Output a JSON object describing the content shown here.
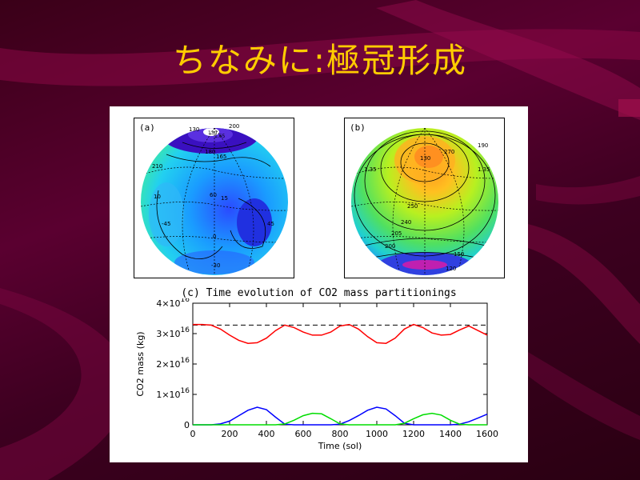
{
  "slide": {
    "title": "ちなみに:極冠形成"
  },
  "globes": [
    {
      "label": "(a)",
      "contours": [
        "130",
        "200",
        "165",
        "180",
        "210",
        "10",
        "-45",
        "60",
        "0",
        "15",
        "45",
        "-30",
        "130",
        "1.65"
      ]
    },
    {
      "label": "(b)",
      "contours": [
        "130",
        "270",
        "190",
        "1.35",
        "1.35",
        "250",
        "200",
        "205",
        "240",
        "150",
        "120"
      ]
    }
  ],
  "chart_data": {
    "type": "line",
    "title": "(c) Time evolution of CO2 mass partitionings",
    "xlabel": "Time (sol)",
    "ylabel": "CO2 mass (kg)",
    "xlim": [
      0,
      1600
    ],
    "ylim": [
      0,
      4e+16
    ],
    "xticks": [
      "0",
      "200",
      "400",
      "600",
      "800",
      "1000",
      "1200",
      "1400",
      "1600"
    ],
    "yticks": [
      {
        "value": 0,
        "label": "0"
      },
      {
        "value": 1e+16,
        "label": "1×10",
        "exp": "16"
      },
      {
        "value": 2e+16,
        "label": "2×10",
        "exp": "16"
      },
      {
        "value": 3e+16,
        "label": "3×10",
        "exp": "16"
      },
      {
        "value": 4e+16,
        "label": "4×10",
        "exp": "16"
      }
    ],
    "reference_line": {
      "y": 3.28e+16,
      "style": "dashed",
      "color": "#000000"
    },
    "series": [
      {
        "color": "#ff0000",
        "x": [
          0,
          50,
          100,
          150,
          200,
          250,
          300,
          350,
          400,
          450,
          500,
          550,
          600,
          650,
          700,
          750,
          800,
          850,
          900,
          950,
          1000,
          1050,
          1100,
          1150,
          1200,
          1250,
          1300,
          1350,
          1400,
          1450,
          1500,
          1550,
          1600
        ],
        "y": [
          3.3e+16,
          3.3e+16,
          3.28e+16,
          3.15e+16,
          2.95e+16,
          2.78e+16,
          2.68e+16,
          2.7e+16,
          2.85e+16,
          3.1e+16,
          3.28e+16,
          3.2e+16,
          3.05e+16,
          2.95e+16,
          2.95e+16,
          3.05e+16,
          3.25e+16,
          3.3e+16,
          3.15e+16,
          2.9e+16,
          2.7e+16,
          2.68e+16,
          2.85e+16,
          3.15e+16,
          3.3e+16,
          3.2e+16,
          3.02e+16,
          2.95e+16,
          2.97e+16,
          3.12e+16,
          3.25e+16,
          3.1e+16,
          2.95e+16
        ]
      },
      {
        "color": "#0000ff",
        "x": [
          0,
          100,
          150,
          200,
          250,
          300,
          350,
          400,
          450,
          500,
          550,
          700,
          750,
          800,
          850,
          900,
          950,
          1000,
          1050,
          1100,
          1150,
          1200,
          1400,
          1450,
          1500,
          1550,
          1600
        ],
        "y": [
          0,
          0,
          300000000000000.0,
          1200000000000000.0,
          3000000000000000.0,
          4800000000000000.0,
          5800000000000000.0,
          5000000000000000.0,
          2500000000000000.0,
          200000000000000.0,
          0,
          0,
          0,
          200000000000000.0,
          1400000000000000.0,
          3000000000000000.0,
          4800000000000000.0,
          5800000000000000.0,
          5200000000000000.0,
          3000000000000000.0,
          500000000000000.0,
          0,
          0,
          200000000000000.0,
          1000000000000000.0,
          2200000000000000.0,
          3500000000000000.0
        ]
      },
      {
        "color": "#00dd00",
        "x": [
          0,
          450,
          500,
          550,
          600,
          650,
          700,
          750,
          800,
          850,
          1100,
          1150,
          1200,
          1250,
          1300,
          1350,
          1400,
          1450,
          1500,
          1600
        ],
        "y": [
          0,
          0,
          300000000000000.0,
          1500000000000000.0,
          3000000000000000.0,
          3800000000000000.0,
          3600000000000000.0,
          2000000000000000.0,
          300000000000000.0,
          0,
          0,
          500000000000000.0,
          2000000000000000.0,
          3300000000000000.0,
          3800000000000000.0,
          3200000000000000.0,
          1500000000000000.0,
          200000000000000.0,
          0,
          0
        ]
      }
    ]
  }
}
